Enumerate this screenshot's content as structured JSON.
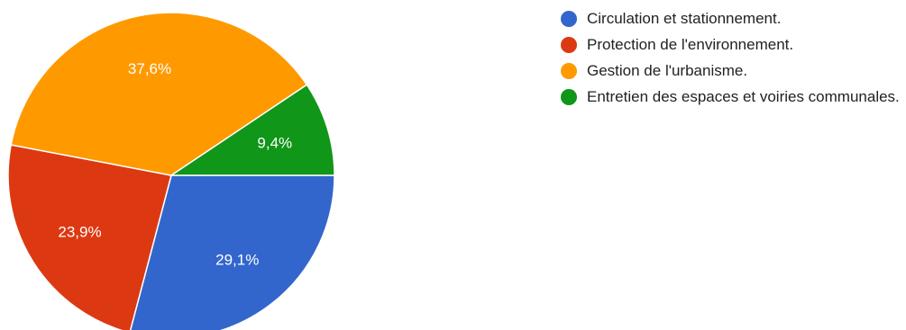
{
  "chart_data": {
    "type": "pie",
    "slices": [
      {
        "label": "Circulation et stationnement.",
        "value": 29.1,
        "display": "29,1%",
        "color": "#3366cc"
      },
      {
        "label": "Protection de l'environnement.",
        "value": 23.9,
        "display": "23,9%",
        "color": "#dc3912"
      },
      {
        "label": "Gestion de l'urbanisme.",
        "value": 37.6,
        "display": "37,6%",
        "color": "#ff9900"
      },
      {
        "label": "Entretien des espaces et voiries communales.",
        "value": 9.4,
        "display": "9,4%",
        "color": "#109618"
      }
    ],
    "start_angle_deg": 90,
    "direction": "clockwise",
    "legend_position": "right"
  }
}
